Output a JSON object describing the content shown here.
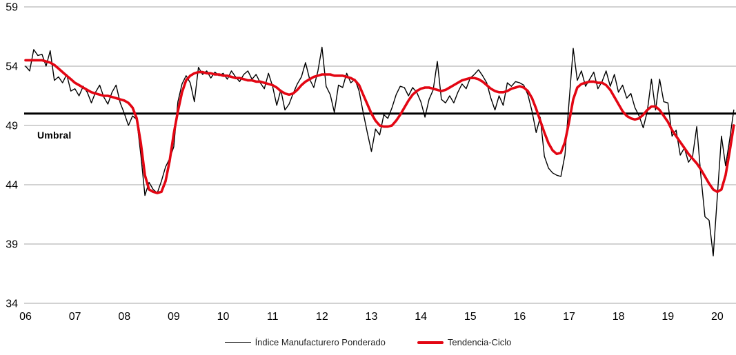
{
  "chart_data": {
    "type": "line",
    "title": "",
    "x_year_labels": [
      "06",
      "07",
      "08",
      "09",
      "10",
      "11",
      "12",
      "13",
      "14",
      "15",
      "16",
      "17",
      "18",
      "19",
      "20"
    ],
    "months_per_year": 12,
    "y_ticks": [
      34,
      39,
      44,
      49,
      54,
      59
    ],
    "ylim": [
      34,
      59
    ],
    "grid": "horizontal",
    "grid_color": "#a6a6a6",
    "legend_position": "bottom",
    "threshold": {
      "value": 50,
      "label": "Umbral",
      "color": "#000000"
    },
    "series": [
      {
        "name": "Índice Manufacturero Ponderado",
        "color": "#000000",
        "stroke_width": 1.4,
        "values": [
          54.0,
          53.6,
          55.4,
          54.9,
          55.0,
          54.0,
          55.3,
          52.8,
          53.1,
          52.6,
          53.3,
          51.9,
          52.1,
          51.5,
          52.3,
          51.8,
          50.9,
          51.8,
          52.4,
          51.4,
          50.8,
          51.8,
          52.4,
          50.9,
          50.0,
          49.0,
          49.8,
          49.5,
          46.5,
          43.1,
          44.2,
          43.6,
          43.3,
          44.3,
          45.5,
          46.2,
          47.2,
          51.0,
          52.5,
          53.2,
          52.6,
          51.0,
          53.9,
          53.3,
          53.6,
          53.0,
          53.5,
          53.2,
          53.4,
          52.9,
          53.6,
          53.1,
          52.7,
          53.3,
          53.6,
          52.9,
          53.3,
          52.6,
          52.1,
          53.4,
          52.3,
          50.7,
          52.0,
          50.3,
          50.8,
          51.7,
          52.5,
          53.1,
          54.3,
          52.9,
          52.2,
          53.6,
          55.6,
          52.3,
          51.6,
          50.1,
          52.4,
          52.2,
          53.4,
          52.6,
          52.9,
          51.9,
          50.1,
          48.4,
          46.8,
          48.7,
          48.2,
          49.9,
          49.6,
          50.5,
          51.6,
          52.3,
          52.2,
          51.5,
          52.2,
          51.8,
          51.0,
          49.7,
          51.2,
          52.0,
          54.4,
          51.2,
          50.9,
          51.5,
          50.9,
          51.8,
          52.5,
          52.1,
          53.0,
          53.3,
          53.7,
          53.2,
          52.6,
          51.3,
          50.3,
          51.5,
          50.7,
          52.6,
          52.3,
          52.7,
          52.6,
          52.4,
          51.6,
          50.2,
          48.4,
          49.7,
          46.4,
          45.4,
          45.0,
          44.8,
          44.7,
          46.5,
          51.0,
          55.5,
          52.8,
          53.6,
          52.3,
          52.9,
          53.5,
          52.1,
          52.7,
          53.6,
          52.3,
          53.3,
          51.8,
          52.4,
          51.3,
          51.7,
          50.5,
          49.8,
          48.8,
          50.2,
          52.9,
          50.3,
          52.9,
          51.0,
          50.9,
          48.1,
          48.6,
          46.5,
          47.1,
          45.9,
          46.4,
          48.9,
          44.8,
          41.3,
          41.0,
          38.0,
          43.0,
          48.1,
          45.6,
          47.8,
          50.3
        ]
      },
      {
        "name": "Tendencia-Ciclo",
        "color": "#e30613",
        "stroke_width": 3.6,
        "values": [
          54.5,
          54.5,
          54.5,
          54.5,
          54.5,
          54.4,
          54.3,
          54.1,
          53.8,
          53.5,
          53.2,
          52.9,
          52.6,
          52.4,
          52.2,
          52.0,
          51.8,
          51.7,
          51.6,
          51.5,
          51.5,
          51.4,
          51.3,
          51.2,
          51.1,
          50.9,
          50.5,
          49.6,
          47.5,
          44.8,
          43.6,
          43.4,
          43.3,
          43.4,
          44.3,
          46.0,
          48.3,
          50.2,
          51.8,
          52.8,
          53.2,
          53.4,
          53.5,
          53.5,
          53.4,
          53.4,
          53.3,
          53.3,
          53.2,
          53.2,
          53.1,
          53.0,
          53.0,
          52.9,
          52.8,
          52.8,
          52.7,
          52.7,
          52.6,
          52.5,
          52.4,
          52.2,
          51.9,
          51.7,
          51.6,
          51.7,
          52.0,
          52.4,
          52.7,
          52.9,
          53.1,
          53.2,
          53.3,
          53.3,
          53.3,
          53.2,
          53.2,
          53.2,
          53.1,
          53.0,
          52.8,
          52.4,
          51.6,
          50.8,
          50.0,
          49.4,
          49.0,
          48.9,
          48.9,
          49.0,
          49.4,
          49.9,
          50.5,
          51.1,
          51.6,
          51.9,
          52.1,
          52.2,
          52.2,
          52.1,
          52.0,
          51.9,
          52.0,
          52.2,
          52.4,
          52.6,
          52.8,
          52.9,
          53.0,
          53.0,
          52.9,
          52.7,
          52.4,
          52.1,
          51.9,
          51.8,
          51.8,
          51.9,
          52.1,
          52.2,
          52.3,
          52.2,
          51.9,
          51.3,
          50.4,
          49.4,
          48.4,
          47.5,
          46.9,
          46.6,
          46.7,
          47.6,
          49.3,
          51.2,
          52.2,
          52.5,
          52.6,
          52.7,
          52.7,
          52.6,
          52.6,
          52.4,
          52.0,
          51.4,
          50.8,
          50.2,
          49.8,
          49.6,
          49.5,
          49.6,
          49.9,
          50.3,
          50.6,
          50.6,
          50.3,
          49.8,
          49.3,
          48.6,
          48.1,
          47.6,
          47.1,
          46.6,
          46.2,
          45.8,
          45.3,
          44.7,
          44.1,
          43.6,
          43.4,
          43.6,
          44.8,
          46.8,
          49.0
        ]
      }
    ]
  },
  "legend": {
    "items": [
      {
        "label": "Índice Manufacturero Ponderado"
      },
      {
        "label": "Tendencia-Ciclo"
      }
    ]
  }
}
